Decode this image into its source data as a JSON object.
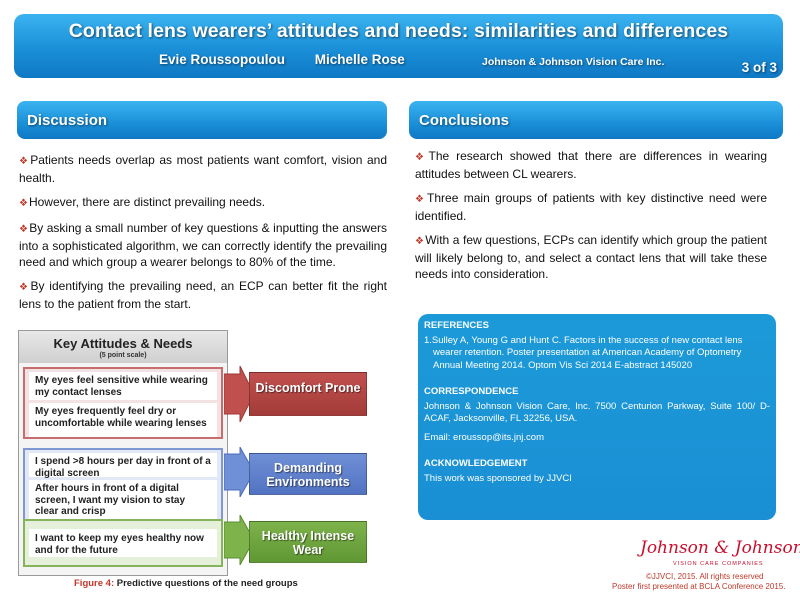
{
  "banner": {
    "title": "Contact lens wearers’ attitudes and needs: similarities and differences",
    "author1": "Evie Roussopoulou",
    "author2": "Michelle Rose",
    "affiliation": "Johnson & Johnson Vision Care Inc.",
    "page": "3 of 3"
  },
  "discussion": {
    "heading": "Discussion",
    "bullets": [
      "Patients needs overlap as most patients want comfort, vision and health.",
      "However, there are distinct prevailing needs.",
      "By asking a small number of key questions & inputting the answers into a sophisticated algorithm, we can correctly identify the prevailing need and which group a wearer belongs to 80% of the time.",
      "By identifying the prevailing need, an ECP can better fit the right lens to the patient from the start."
    ]
  },
  "conclusions": {
    "heading": "Conclusions",
    "bullets": [
      "The research showed that there are differences in wearing attitudes between CL wearers.",
      "Three main groups of patients with key distinctive need were identified.",
      "With a few questions, ECPs can identify which group the patient will likely belong to, and select a contact lens that will take these needs into consideration."
    ]
  },
  "figure": {
    "title": "Key Attitudes & Needs",
    "subtitle": "(5 point scale)",
    "groups": [
      {
        "statements": [
          "My eyes feel sensitive while wearing my contact lenses",
          "My eyes frequently feel dry or uncomfortable while wearing lenses"
        ],
        "need": "Discomfort Prone",
        "color": "#c0504d"
      },
      {
        "statements": [
          "I spend >8 hours per day in front of a digital screen",
          "After hours in front of a digital screen, I want my vision to stay clear and crisp"
        ],
        "need": "Demanding Environments",
        "color": "#5f80cb"
      },
      {
        "statements": [
          "I want to keep my eyes healthy now and for the future"
        ],
        "need": "Healthy Intense Wear",
        "color": "#70a83f"
      }
    ],
    "caption_label": "Figure 4:",
    "caption_text": "Predictive questions of the need groups"
  },
  "references": {
    "heading": "REFERENCES",
    "items": [
      "1.Sulley A, Young G and Hunt C. Factors in the success of new contact lens wearer retention. Poster presentation at American Academy of Optometry Annual Meeting 2014. Optom Vis Sci 2014 E-abstract 145020"
    ],
    "correspondence_heading": "CORRESPONDENCE",
    "correspondence": "Johnson & Johnson Vision Care, Inc. 7500 Centurion Parkway, Suite 100/ D-ACAF, Jacksonville, FL 32256, USA.",
    "email": "Email: eroussop@its.jnj.com",
    "ack_heading": "ACKNOWLEDGEMENT",
    "ack": "This work was sponsored by JJVCI"
  },
  "footer": {
    "logo": "Johnson & Johnson",
    "logo_sub": "VISION CARE COMPANIES",
    "copyright": "©JJVCI, 2015. All rights reserved",
    "presented": "Poster first presented at BCLA Conference 2015."
  },
  "colors": {
    "banner_blue": "#1a8fd8",
    "bullet_red": "#c0392b",
    "logo_red": "#c8102e"
  }
}
